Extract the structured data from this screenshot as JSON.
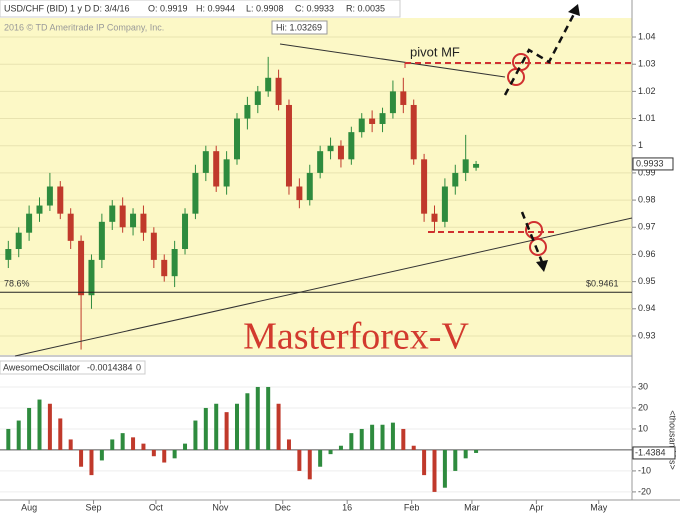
{
  "header": {
    "symbol": "USD/CHF (BID) 1 y D",
    "date": "D: 3/4/16",
    "open": "O: 0.9919",
    "high": "H: 0.9944",
    "low": "L: 0.9908",
    "close": "C: 0.9933",
    "range": "R: 0.0035",
    "copyright": "2016 © TD Ameritrade IP Company, Inc."
  },
  "chart_data": [
    {
      "type": "candlestick",
      "title": "USD/CHF",
      "x": [
        -10,
        -5,
        0,
        5,
        10,
        15,
        20,
        25,
        30,
        35,
        40,
        45,
        50,
        55,
        60,
        65,
        70,
        75,
        80,
        85,
        90,
        95,
        100,
        105,
        110,
        115,
        120,
        125,
        130,
        135,
        140,
        145,
        150,
        155,
        160,
        165,
        170,
        175,
        180,
        185,
        190,
        195,
        200,
        205,
        210,
        215
      ],
      "open": [
        0.958,
        0.962,
        0.968,
        0.975,
        0.978,
        0.985,
        0.975,
        0.965,
        0.945,
        0.958,
        0.972,
        0.978,
        0.97,
        0.975,
        0.968,
        0.958,
        0.952,
        0.962,
        0.975,
        0.99,
        0.998,
        0.985,
        0.995,
        1.01,
        1.015,
        1.02,
        1.025,
        1.015,
        0.985,
        0.98,
        0.99,
        0.998,
        1.0,
        0.995,
        1.005,
        1.01,
        1.008,
        1.012,
        1.02,
        1.015,
        0.995,
        0.975,
        0.972,
        0.985,
        0.99,
        0.9919
      ],
      "high": [
        0.965,
        0.97,
        0.978,
        0.981,
        0.99,
        0.987,
        0.977,
        0.967,
        0.96,
        0.975,
        0.98,
        0.981,
        0.977,
        0.978,
        0.97,
        0.96,
        0.965,
        0.977,
        0.993,
        1.0,
        1.0,
        0.998,
        1.012,
        1.018,
        1.022,
        1.0327,
        1.028,
        1.017,
        0.988,
        0.993,
        1.0,
        1.003,
        1.002,
        1.007,
        1.012,
        1.013,
        1.014,
        1.024,
        1.025,
        1.017,
        0.997,
        0.978,
        0.988,
        0.993,
        1.004,
        0.9944
      ],
      "low": [
        0.955,
        0.959,
        0.965,
        0.972,
        0.976,
        0.973,
        0.962,
        0.925,
        0.94,
        0.955,
        0.969,
        0.968,
        0.967,
        0.965,
        0.955,
        0.95,
        0.948,
        0.96,
        0.973,
        0.987,
        0.983,
        0.982,
        0.993,
        1.006,
        1.012,
        1.018,
        1.013,
        0.982,
        0.977,
        0.978,
        0.988,
        0.995,
        0.992,
        0.993,
        1.003,
        1.005,
        1.005,
        1.01,
        1.012,
        0.993,
        0.972,
        0.968,
        0.97,
        0.982,
        0.987,
        0.9908
      ],
      "close": [
        0.962,
        0.968,
        0.975,
        0.978,
        0.985,
        0.975,
        0.965,
        0.945,
        0.958,
        0.972,
        0.978,
        0.97,
        0.975,
        0.968,
        0.958,
        0.952,
        0.962,
        0.975,
        0.99,
        0.998,
        0.985,
        0.995,
        1.01,
        1.015,
        1.02,
        1.025,
        1.015,
        0.985,
        0.98,
        0.99,
        0.998,
        1.0,
        0.995,
        1.005,
        1.01,
        1.008,
        1.012,
        1.02,
        1.015,
        0.995,
        0.975,
        0.972,
        0.985,
        0.99,
        0.995,
        0.9933
      ],
      "up_color": "#2e8b3e",
      "down_color": "#c0392b",
      "xlim": [
        -14,
        290
      ],
      "xticks": [
        {
          "value": 0,
          "label": "Aug"
        },
        {
          "value": 31,
          "label": "Sep"
        },
        {
          "value": 61,
          "label": "Oct"
        },
        {
          "value": 92,
          "label": "Nov"
        },
        {
          "value": 122,
          "label": "Dec"
        },
        {
          "value": 153,
          "label": "16"
        },
        {
          "value": 184,
          "label": "Feb"
        },
        {
          "value": 213,
          "label": "Mar"
        },
        {
          "value": 244,
          "label": "Apr"
        },
        {
          "value": 274,
          "label": "May"
        }
      ],
      "ylim": [
        0.923,
        1.047
      ],
      "yticks": [
        0.93,
        0.94,
        0.95,
        0.96,
        0.97,
        0.98,
        0.99,
        1,
        1.01,
        1.02,
        1.03,
        1.04
      ],
      "grid": true,
      "level": {
        "label": "78.6%",
        "value": 0.9461,
        "value_label": "$0.9461"
      },
      "hi_label": "Hi: 1.03269",
      "pivot_label": "pivot MF",
      "watermark": "Masterforex-V"
    },
    {
      "type": "bar",
      "title": "AwesomeOscillator",
      "header_value": "-0.0014384",
      "header_param": "0",
      "axis_label": "<thousandths>",
      "x": [
        -10,
        -5,
        0,
        5,
        10,
        15,
        20,
        25,
        30,
        35,
        40,
        45,
        50,
        55,
        60,
        65,
        70,
        75,
        80,
        85,
        90,
        95,
        100,
        105,
        110,
        115,
        120,
        125,
        130,
        135,
        140,
        145,
        150,
        155,
        160,
        165,
        170,
        175,
        180,
        185,
        190,
        195,
        200,
        205,
        210,
        215
      ],
      "values": [
        10,
        14,
        20,
        24,
        22,
        15,
        5,
        -8,
        -12,
        -5,
        5,
        8,
        6,
        3,
        -3,
        -6,
        -4,
        3,
        14,
        20,
        22,
        18,
        22,
        27,
        30,
        30,
        22,
        5,
        -10,
        -14,
        -8,
        -2,
        2,
        8,
        10,
        12,
        12,
        13,
        10,
        2,
        -12,
        -20,
        -18,
        -10,
        -4,
        -1.4384
      ],
      "up_color": "#2e8b3e",
      "down_color": "#c0392b",
      "xlim": [
        -14,
        290
      ],
      "ylim": [
        -22.9,
        35.7
      ],
      "yticks": [
        -20,
        -10,
        10,
        20,
        30
      ],
      "grid": true
    }
  ]
}
